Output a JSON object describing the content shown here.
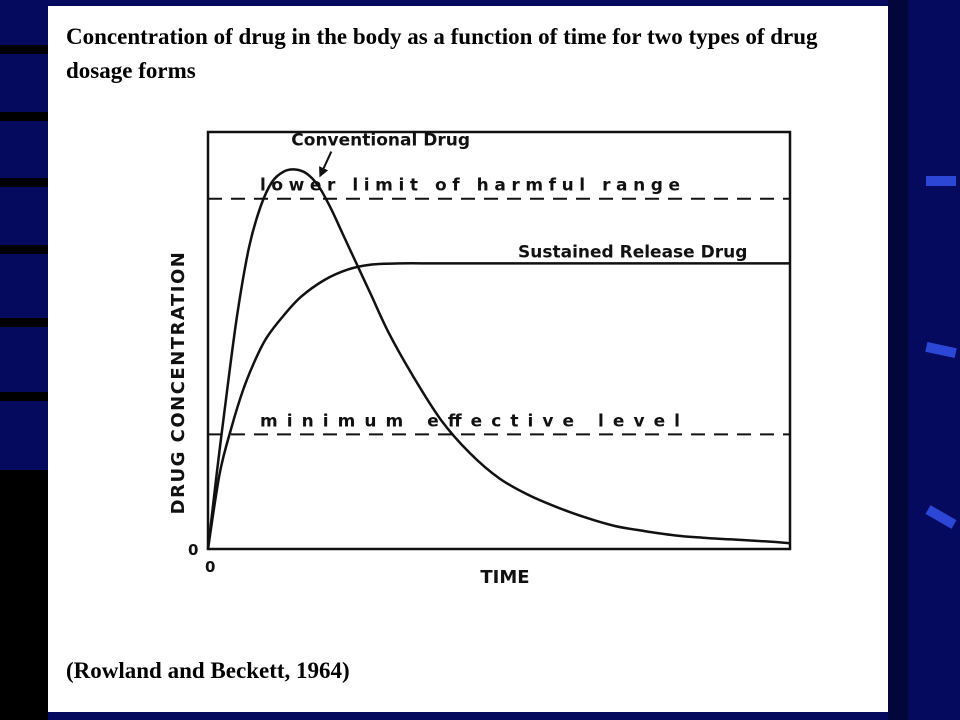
{
  "slide": {
    "title": "Concentration of drug in the body as a function of time for two types of drug dosage forms",
    "citation": "(Rowland and Beckett, 1964)"
  },
  "colors": {
    "background": "#060a5e",
    "slide": "#ffffff",
    "ink": "#111111",
    "accent": "#2c46d6"
  },
  "chart_data": {
    "type": "line",
    "xlabel": "TIME",
    "ylabel": "DRUG CONCENTRATION",
    "x_origin_label": "0",
    "y_origin_label": "0",
    "ticks": false,
    "grid": false,
    "legend": "none",
    "xlim": [
      0,
      100
    ],
    "ylim": [
      0,
      100
    ],
    "series": [
      {
        "name": "Conventional Drug",
        "style": "solid",
        "points": [
          [
            0,
            0
          ],
          [
            1.5,
            18
          ],
          [
            3,
            35
          ],
          [
            5,
            56
          ],
          [
            7,
            72
          ],
          [
            9,
            82
          ],
          [
            11,
            88
          ],
          [
            13,
            90.5
          ],
          [
            15,
            91
          ],
          [
            17,
            90
          ],
          [
            19,
            87
          ],
          [
            21,
            82
          ],
          [
            23,
            76
          ],
          [
            25,
            70
          ],
          [
            28,
            61
          ],
          [
            31,
            52
          ],
          [
            35,
            42
          ],
          [
            40,
            31
          ],
          [
            45,
            23
          ],
          [
            50,
            17
          ],
          [
            55,
            13
          ],
          [
            60,
            10
          ],
          [
            65,
            7.5
          ],
          [
            70,
            5.5
          ],
          [
            75,
            4.3
          ],
          [
            80,
            3.3
          ],
          [
            85,
            2.7
          ],
          [
            90,
            2.3
          ],
          [
            95,
            1.9
          ],
          [
            100,
            1.4
          ]
        ]
      },
      {
        "name": "Sustained Release Drug",
        "style": "solid",
        "points": [
          [
            0,
            0
          ],
          [
            2,
            18
          ],
          [
            4,
            29
          ],
          [
            6,
            38
          ],
          [
            8,
            45
          ],
          [
            10,
            50.5
          ],
          [
            13,
            56
          ],
          [
            16,
            60.5
          ],
          [
            20,
            64.5
          ],
          [
            24,
            67
          ],
          [
            28,
            68.2
          ],
          [
            33,
            68.5
          ],
          [
            40,
            68.5
          ],
          [
            55,
            68.5
          ],
          [
            70,
            68.5
          ],
          [
            85,
            68.5
          ],
          [
            100,
            68.5
          ]
        ]
      }
    ],
    "reference_lines": [
      {
        "label": "lower limit of harmful range",
        "y": 84,
        "style": "dashed"
      },
      {
        "label": "minimum effective level",
        "y": 27.5,
        "style": "dashed"
      }
    ],
    "annotations": [
      {
        "text": "Conventional Drug",
        "points_to": "peak of Conventional Drug curve"
      },
      {
        "text": "Sustained Release Drug",
        "near": "plateau of Sustained Release Drug curve"
      }
    ]
  }
}
